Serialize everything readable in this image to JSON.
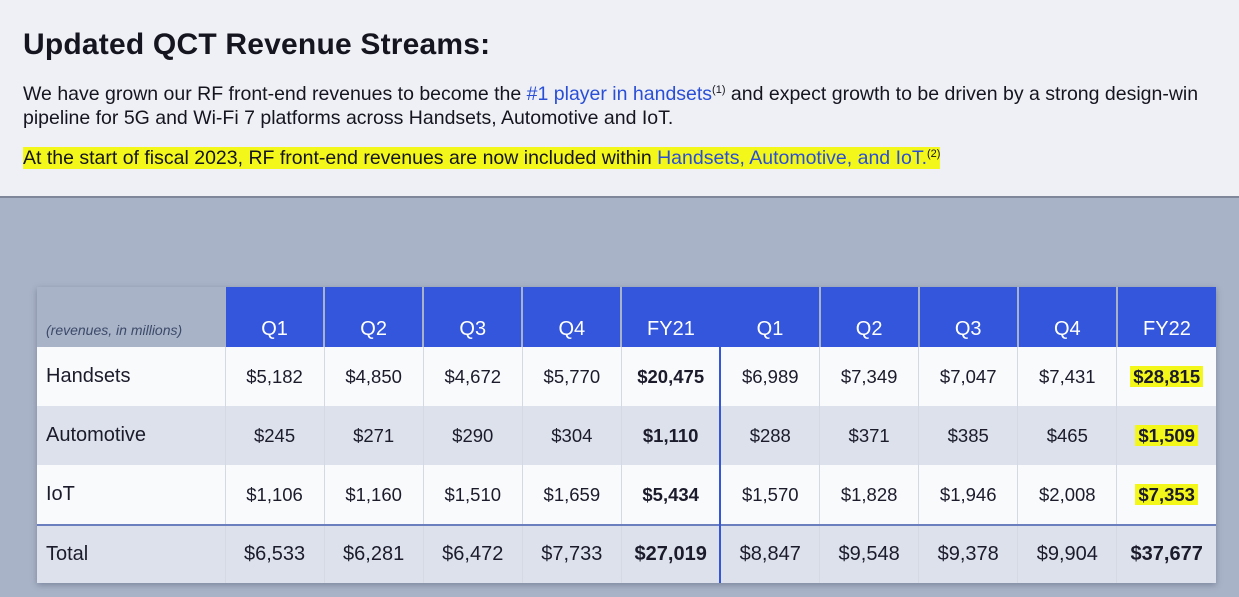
{
  "header": {
    "title": "Updated QCT Revenue Streams:",
    "para1_before": "We have grown our RF front-end revenues to become the ",
    "para1_link": "#1 player in handsets",
    "para1_sup": "(1)",
    "para1_after": " and expect growth to be driven by a strong design-win pipeline for 5G and Wi-Fi 7 platforms across Handsets, Automotive and IoT.",
    "para2_text": "At the start of fiscal 2023, RF front-end revenues are now included within ",
    "para2_link": "Handsets, Automotive, and IoT.",
    "para2_sup": "(2)"
  },
  "table": {
    "unit_note": "(revenues, in millions)",
    "columns": [
      "Q1",
      "Q2",
      "Q3",
      "Q4",
      "FY21",
      "Q1",
      "Q2",
      "Q3",
      "Q4",
      "FY22"
    ],
    "rows": [
      {
        "label": "Handsets",
        "values": [
          "$5,182",
          "$4,850",
          "$4,672",
          "$5,770",
          "$20,475",
          "$6,989",
          "$7,349",
          "$7,047",
          "$7,431",
          "$28,815"
        ]
      },
      {
        "label": "Automotive",
        "values": [
          "$245",
          "$271",
          "$290",
          "$304",
          "$1,110",
          "$288",
          "$371",
          "$385",
          "$465",
          "$1,509"
        ]
      },
      {
        "label": "IoT",
        "values": [
          "$1,106",
          "$1,160",
          "$1,510",
          "$1,659",
          "$5,434",
          "$1,570",
          "$1,828",
          "$1,946",
          "$2,008",
          "$7,353"
        ]
      },
      {
        "label": "Total",
        "values": [
          "$6,533",
          "$6,281",
          "$6,472",
          "$7,733",
          "$27,019",
          "$8,847",
          "$9,548",
          "$9,378",
          "$9,904",
          "$37,677"
        ]
      }
    ]
  },
  "colors": {
    "accent_blue": "#3356dc",
    "highlight_yellow": "#f4f71a",
    "link_blue": "#2a4fd6"
  }
}
